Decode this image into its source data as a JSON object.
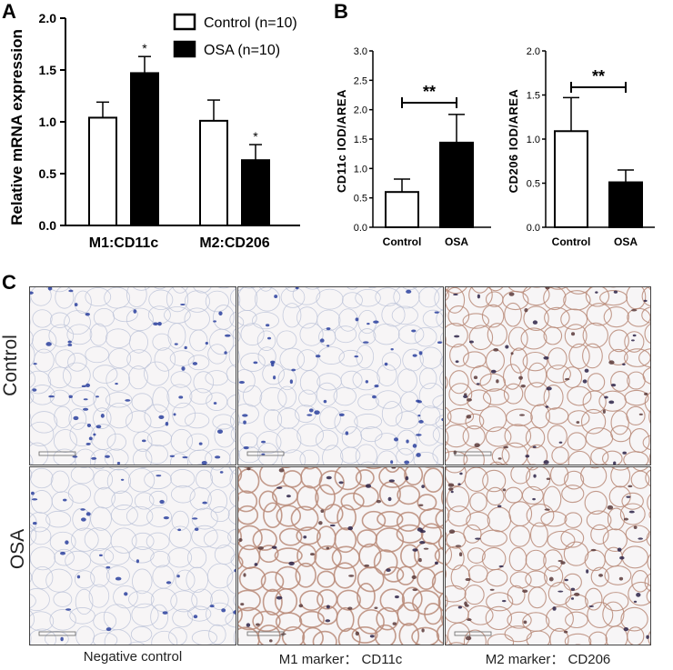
{
  "panels": {
    "a": "A",
    "b": "B",
    "c": "C"
  },
  "chart_data": [
    {
      "type": "bar",
      "panel": "A",
      "ylabel": "Relative mRNA expression",
      "ylim": [
        0,
        2.0
      ],
      "yticks": [
        "0.0",
        "0.5",
        "1.0",
        "1.5",
        "2.0"
      ],
      "categories": [
        "M1:CD11c",
        "M2:CD206"
      ],
      "series": [
        {
          "name": "Control (n=10)",
          "values": [
            1.04,
            1.01
          ],
          "errors": [
            0.15,
            0.2
          ],
          "color": "#ffffff"
        },
        {
          "name": "OSA (n=10)",
          "values": [
            1.47,
            0.63
          ],
          "errors": [
            0.16,
            0.15
          ],
          "color": "#000000"
        }
      ],
      "annotations": [
        {
          "category": "M1:CD11c",
          "series": "OSA (n=10)",
          "text": "*"
        },
        {
          "category": "M2:CD206",
          "series": "OSA (n=10)",
          "text": "*"
        }
      ],
      "legend_position": "top-right"
    },
    {
      "type": "bar",
      "panel": "B",
      "ylabel": "CD11c  IOD/AREA",
      "ylim": [
        0,
        3.0
      ],
      "yticks": [
        "0.0",
        "0.5",
        "1.0",
        "1.5",
        "2.0",
        "2.5",
        "3.0"
      ],
      "categories": [
        "Control",
        "OSA"
      ],
      "values": [
        0.6,
        1.44
      ],
      "errors": [
        0.22,
        0.48
      ],
      "colors": [
        "#ffffff",
        "#000000"
      ],
      "significance": "**"
    },
    {
      "type": "bar",
      "panel": "B",
      "ylabel": "CD206  IOD/AREA",
      "ylim": [
        0,
        2.0
      ],
      "yticks": [
        "0.0",
        "0.5",
        "1.0",
        "1.5",
        "2.0"
      ],
      "categories": [
        "Control",
        "OSA"
      ],
      "values": [
        1.09,
        0.51
      ],
      "errors": [
        0.38,
        0.14
      ],
      "colors": [
        "#ffffff",
        "#000000"
      ],
      "significance": "**"
    }
  ],
  "micrographs": {
    "rows": [
      "Control",
      "OSA"
    ],
    "columns": [
      "Negative control",
      "M1 marker： CD11c",
      "M2 marker： CD206"
    ],
    "stain_colors": {
      "membrane_brown": "#b98a78",
      "nucleus_blue": "#2a3f9e",
      "background": "#f7f5f6"
    }
  }
}
